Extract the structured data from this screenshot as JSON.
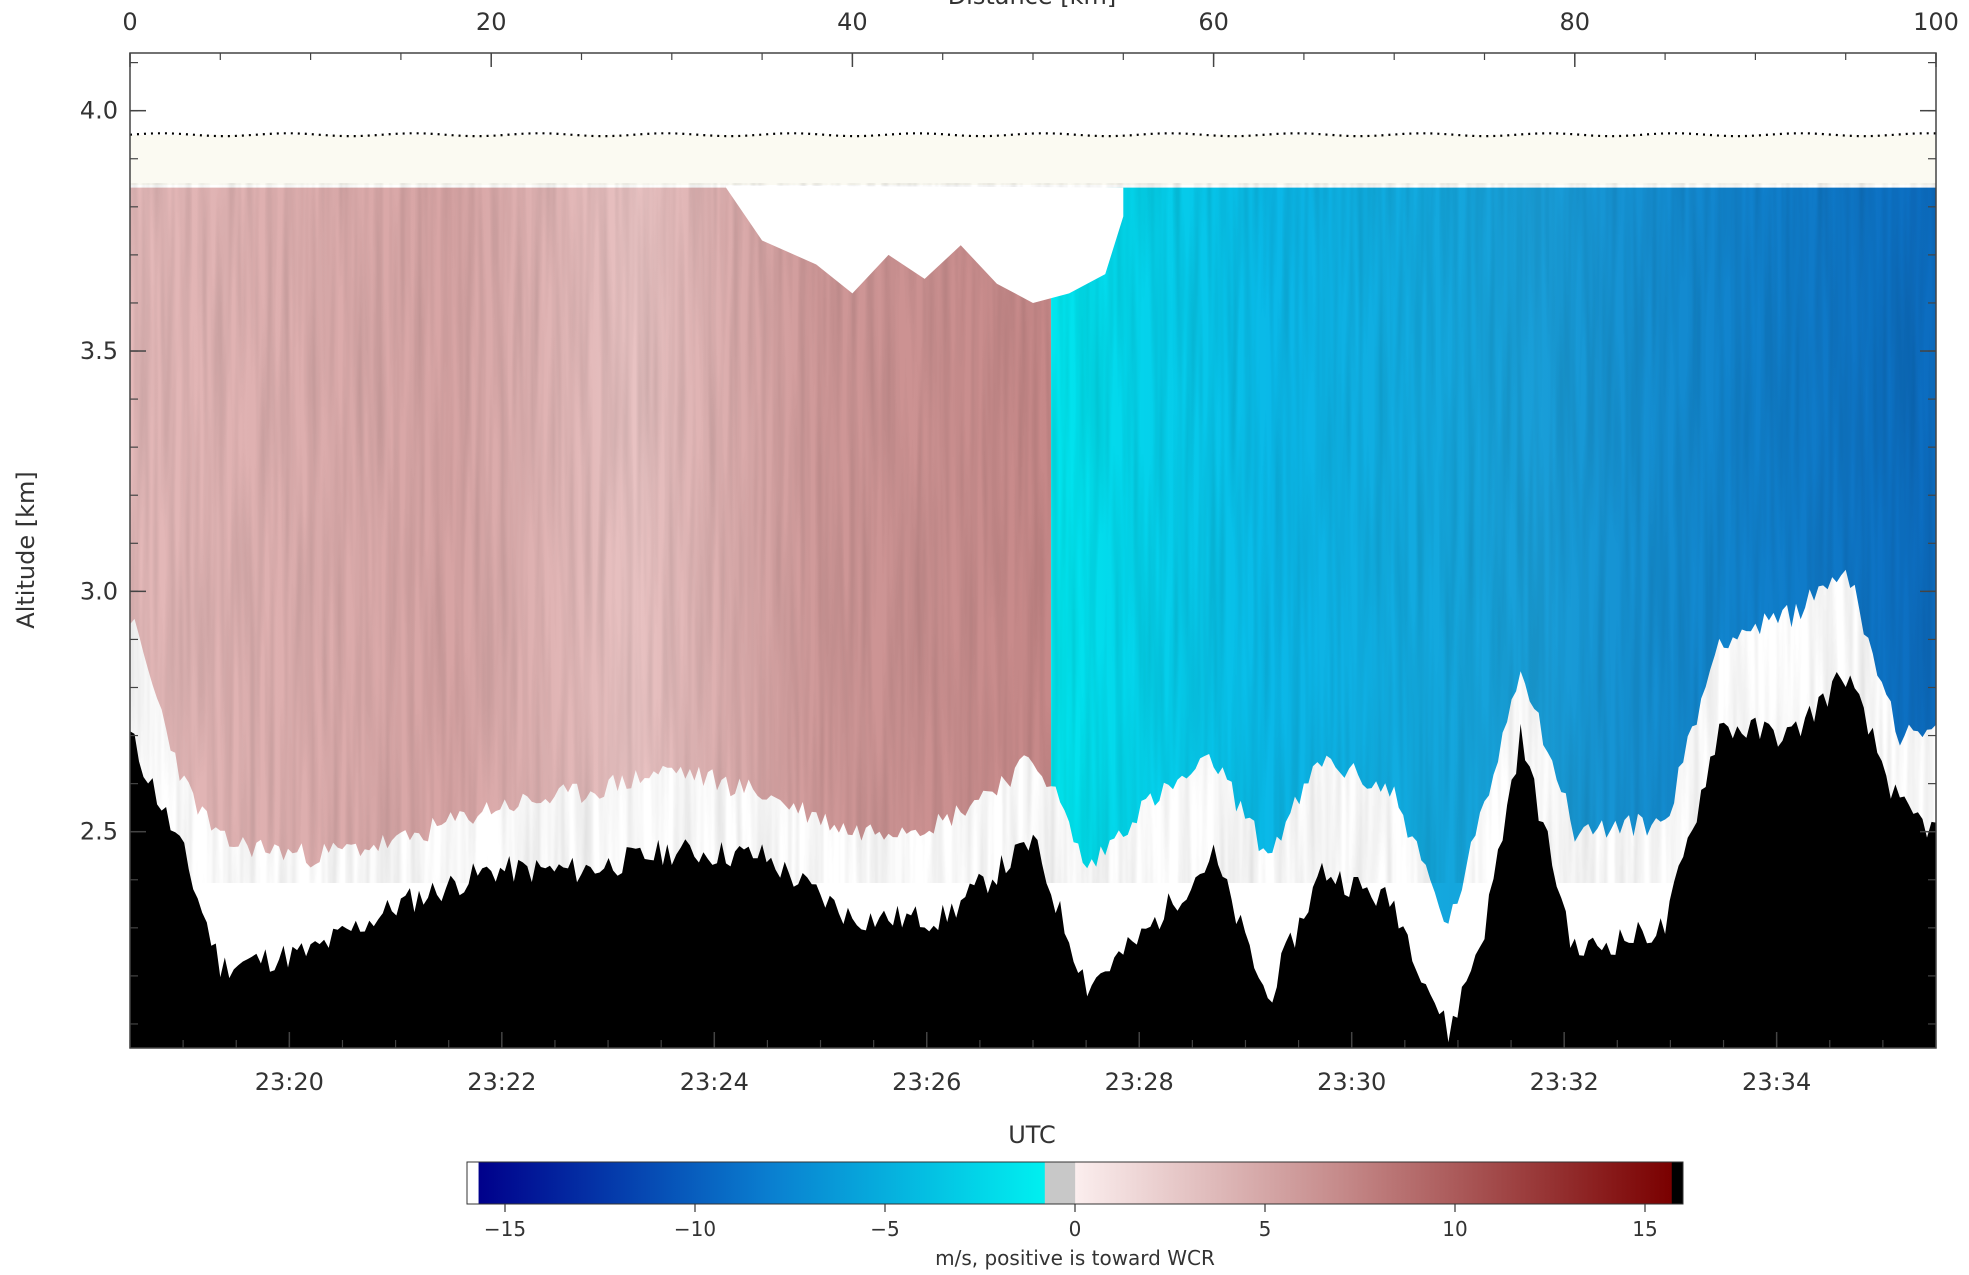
{
  "chart_data": {
    "type": "heatmap",
    "top_axis": {
      "label": "Distance [km]",
      "range": [
        0,
        100
      ],
      "ticks": [
        "0",
        "20",
        "40",
        "60",
        "80",
        "100"
      ]
    },
    "bottom_axis": {
      "label": "UTC",
      "range": [
        "23:18:30",
        "23:35:30"
      ],
      "ticks": [
        "23:20",
        "23:22",
        "23:24",
        "23:26",
        "23:28",
        "23:30",
        "23:32",
        "23:34"
      ]
    },
    "y_axis": {
      "label": "Altitude [km]",
      "range": [
        2.05,
        4.12
      ],
      "ticks": [
        "2.5",
        "3.0",
        "3.5",
        "4.0"
      ]
    },
    "colorbar": {
      "label": "m/s, positive is toward WCR",
      "range": [
        -16,
        16
      ],
      "ticks": [
        "−15",
        "−10",
        "−5",
        "0",
        "5",
        "10",
        "15"
      ],
      "colors": {
        "neg_max": "#00008b",
        "neg_mid": "#0a7fd0",
        "neg_min": "#00f0f0",
        "zero": "#c8c8c8",
        "pos_min": "#fbeeee",
        "pos_mid": "#c58a8a",
        "pos_max": "#7a0000"
      }
    },
    "dotted_line_altitude_km": 3.95,
    "echo_top_km": 3.84,
    "dominant_velocity": {
      "before_23_27": "positive (toward WCR), about +3 to +8 m/s",
      "after_23_27": "negative (away from WCR), about -3 to -10 m/s"
    },
    "terrain_profile_km": {
      "x_km": [
        0,
        3,
        5,
        10,
        15,
        20,
        25,
        30,
        35,
        40,
        45,
        50,
        51,
        53,
        56,
        60,
        63,
        66,
        70,
        73,
        75,
        77,
        80,
        85,
        88,
        92,
        95,
        98,
        100
      ],
      "height": [
        2.7,
        2.45,
        2.22,
        2.25,
        2.35,
        2.42,
        2.42,
        2.46,
        2.45,
        2.32,
        2.32,
        2.48,
        2.38,
        2.18,
        2.28,
        2.45,
        2.15,
        2.42,
        2.35,
        2.08,
        2.3,
        2.7,
        2.25,
        2.3,
        2.72,
        2.7,
        2.83,
        2.55,
        2.5
      ]
    },
    "echo_base_km": {
      "x_km": [
        0,
        3,
        5,
        10,
        15,
        20,
        25,
        30,
        35,
        40,
        45,
        50,
        51,
        53,
        56,
        60,
        63,
        66,
        70,
        73,
        75,
        77,
        80,
        85,
        88,
        92,
        95,
        98,
        100
      ],
      "height": [
        2.95,
        2.6,
        2.48,
        2.45,
        2.48,
        2.55,
        2.58,
        2.63,
        2.58,
        2.5,
        2.52,
        2.65,
        2.6,
        2.42,
        2.55,
        2.65,
        2.45,
        2.65,
        2.58,
        2.3,
        2.55,
        2.85,
        2.5,
        2.52,
        2.9,
        2.95,
        3.05,
        2.7,
        2.7
      ]
    }
  }
}
